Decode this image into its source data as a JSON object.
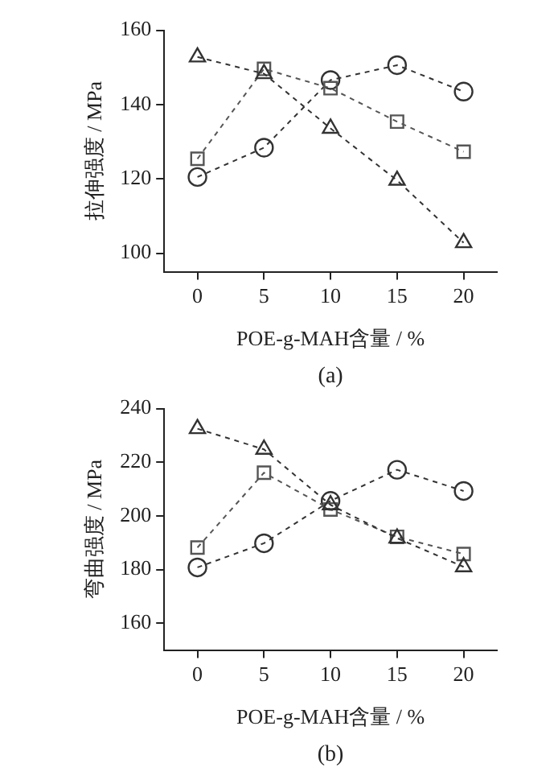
{
  "chart_data": [
    {
      "type": "line",
      "xlabel": "POE-g-MAH含量 / %",
      "ylabel": "拉伸强度 / MPa",
      "annotations": [
        "(a)"
      ],
      "x": [
        0,
        5,
        10,
        15,
        20
      ],
      "xlim": [
        -2.5,
        22.5
      ],
      "xticks": [
        0,
        5,
        10,
        15,
        20
      ],
      "ylim": [
        95,
        160
      ],
      "yticks": [
        100,
        120,
        140,
        160
      ],
      "grid": false,
      "line_style": "dashed",
      "series": [
        {
          "color": "#333333",
          "marker": "circle",
          "values": [
            120.5,
            128.4,
            146.6,
            150.6,
            143.5
          ]
        },
        {
          "color": "#555555",
          "marker": "square",
          "values": [
            125.4,
            149.6,
            144.4,
            135.4,
            127.3
          ]
        },
        {
          "color": "#333333",
          "marker": "triangle",
          "values": [
            152.8,
            148.3,
            133.6,
            119.6,
            102.8
          ]
        }
      ]
    },
    {
      "type": "line",
      "xlabel": "POE-g-MAH含量 / %",
      "ylabel": "弯曲强度 / MPa",
      "annotations": [
        "(b)"
      ],
      "x": [
        0,
        5,
        10,
        15,
        20
      ],
      "xlim": [
        -2.5,
        22.5
      ],
      "xticks": [
        0,
        5,
        10,
        15,
        20
      ],
      "ylim": [
        150,
        240
      ],
      "yticks": [
        160,
        180,
        200,
        220,
        240
      ],
      "grid": false,
      "line_style": "dashed",
      "series": [
        {
          "color": "#333333",
          "marker": "circle",
          "values": [
            180.8,
            189.8,
            205.6,
            217.2,
            209.3
          ]
        },
        {
          "color": "#555555",
          "marker": "square",
          "values": [
            188.2,
            216.1,
            202.4,
            192.2,
            185.8
          ]
        },
        {
          "color": "#333333",
          "marker": "triangle",
          "values": [
            232.5,
            224.8,
            204.1,
            191.7,
            181.0
          ]
        }
      ]
    }
  ]
}
